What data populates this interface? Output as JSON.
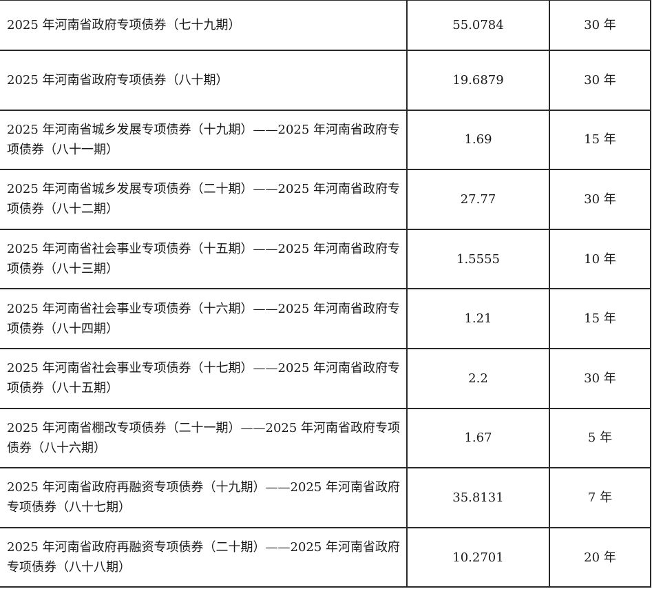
{
  "rows": [
    {
      "name": "2025 年河南省政府专项债券（七十九期）",
      "amount": "55.0784",
      "term": "30 年"
    },
    {
      "name": "2025 年河南省政府专项债券（八十期）",
      "amount": "19.6879",
      "term": "30 年"
    },
    {
      "name": "2025 年河南省城乡发展专项债券（十九期）——2025 年河南省政府专项债券（八十一期）",
      "amount": "1.69",
      "term": "15 年"
    },
    {
      "name": "2025 年河南省城乡发展专项债券（二十期）——2025 年河南省政府专项债券（八十二期）",
      "amount": "27.77",
      "term": "30 年"
    },
    {
      "name": "2025 年河南省社会事业专项债券（十五期）——2025 年河南省政府专项债券（八十三期）",
      "amount": "1.5555",
      "term": "10 年"
    },
    {
      "name": "2025 年河南省社会事业专项债券（十六期）——2025 年河南省政府专项债券（八十四期）",
      "amount": "1.21",
      "term": "15 年"
    },
    {
      "name": "2025 年河南省社会事业专项债券（十七期）——2025 年河南省政府专项债券（八十五期）",
      "amount": "2.2",
      "term": "30 年"
    },
    {
      "name": "2025 年河南省棚改专项债券（二十一期）——2025 年河南省政府专项债券（八十六期）",
      "amount": "1.67",
      "term": "5 年"
    },
    {
      "name": "2025 年河南省政府再融资专项债券（十九期）——2025 年河南省政府专项债券（八十七期）",
      "amount": "35.8131",
      "term": "7 年"
    },
    {
      "name": "2025 年河南省政府再融资专项债券（二十期）——2025 年河南省政府专项债券（八十八期）",
      "amount": "10.2701",
      "term": "20 年"
    }
  ]
}
